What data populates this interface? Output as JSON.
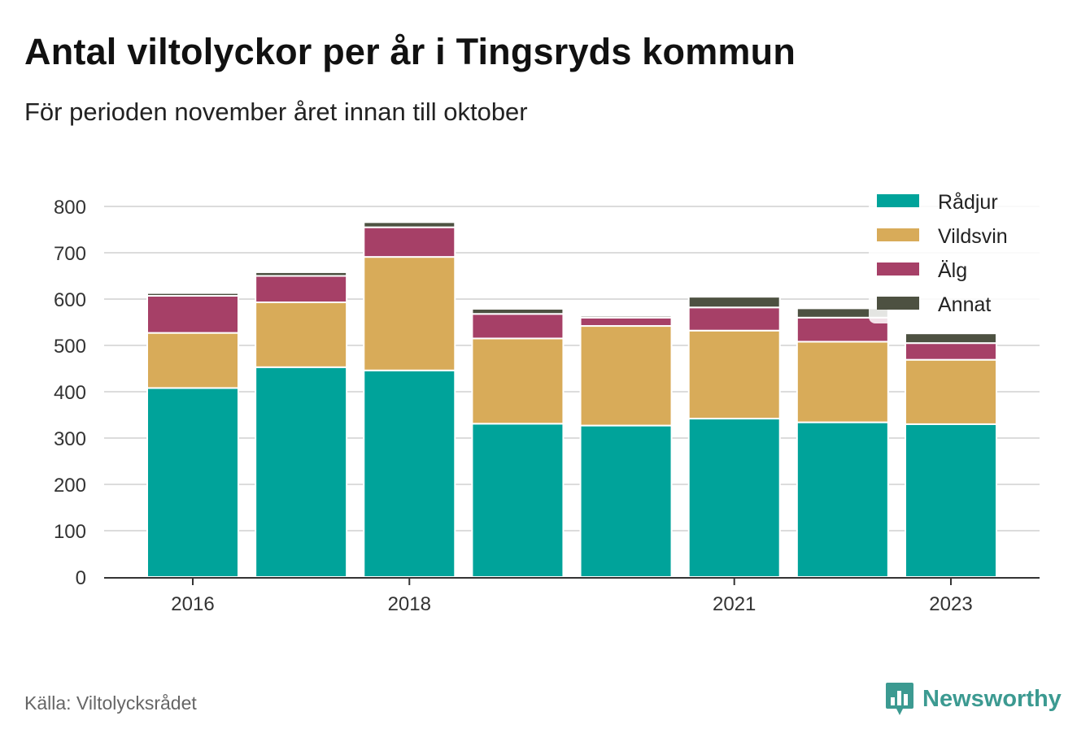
{
  "title": "Antal viltolyckor per år i Tingsryds kommun",
  "subtitle": "För perioden november året innan till oktober",
  "source": "Källa: Viltolycksrådet",
  "brand": {
    "name": "Newsworthy",
    "icon": "newsworthy-bar-chart-logo-icon",
    "color": "#3c9a91"
  },
  "chart_data": {
    "type": "bar",
    "stacked": true,
    "categories": [
      "2016",
      "2017",
      "2018",
      "2019",
      "2020",
      "2021",
      "2022",
      "2023"
    ],
    "x_tick_labels": [
      {
        "category": "2016",
        "label": "2016"
      },
      {
        "category": "2018",
        "label": "2018"
      },
      {
        "category": "2021",
        "label": "2021"
      },
      {
        "category": "2023",
        "label": "2023"
      }
    ],
    "series": [
      {
        "name": "Rådjur",
        "color": "#00a39a",
        "values": [
          408,
          453,
          446,
          331,
          327,
          342,
          334,
          330
        ]
      },
      {
        "name": "Vildsvin",
        "color": "#d8ab59",
        "values": [
          119,
          140,
          245,
          184,
          215,
          190,
          174,
          139
        ]
      },
      {
        "name": "Älg",
        "color": "#a64067",
        "values": [
          80,
          57,
          64,
          53,
          18,
          50,
          52,
          36
        ]
      },
      {
        "name": "Annat",
        "color": "#4d5141",
        "values": [
          6,
          8,
          11,
          11,
          4,
          23,
          20,
          21
        ]
      }
    ],
    "ylim": [
      0,
      800
    ],
    "yticks": [
      0,
      100,
      200,
      300,
      400,
      500,
      600,
      700,
      800
    ],
    "grid": true,
    "legend_position": "top-right"
  }
}
